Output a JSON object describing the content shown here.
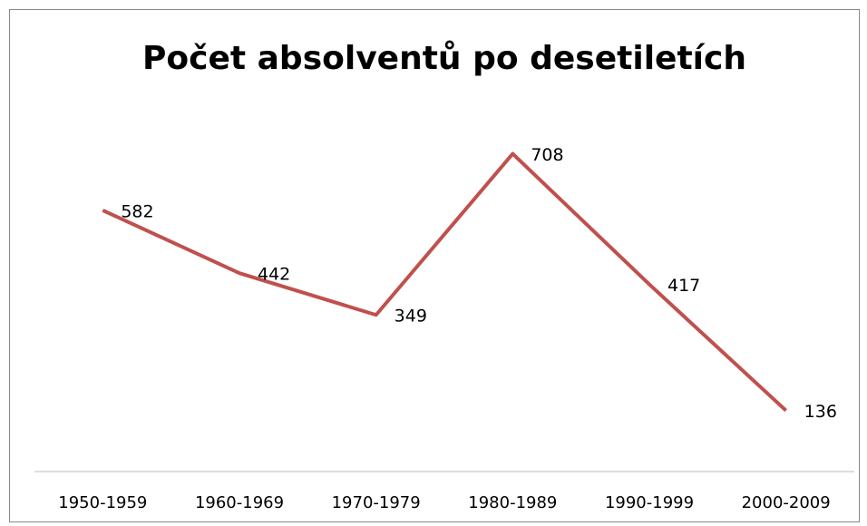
{
  "chart_data": {
    "type": "line",
    "title": "Počet absolventů po desetiletích",
    "categories": [
      "1950-1959",
      "1960-1969",
      "1970-1979",
      "1980-1989",
      "1990-1999",
      "2000-2009"
    ],
    "series": [
      {
        "name": "Počet absolventů",
        "color": "#c0504d",
        "values": [
          582,
          442,
          349,
          708,
          417,
          136
        ]
      }
    ],
    "ylim": [
      0,
      800
    ]
  }
}
